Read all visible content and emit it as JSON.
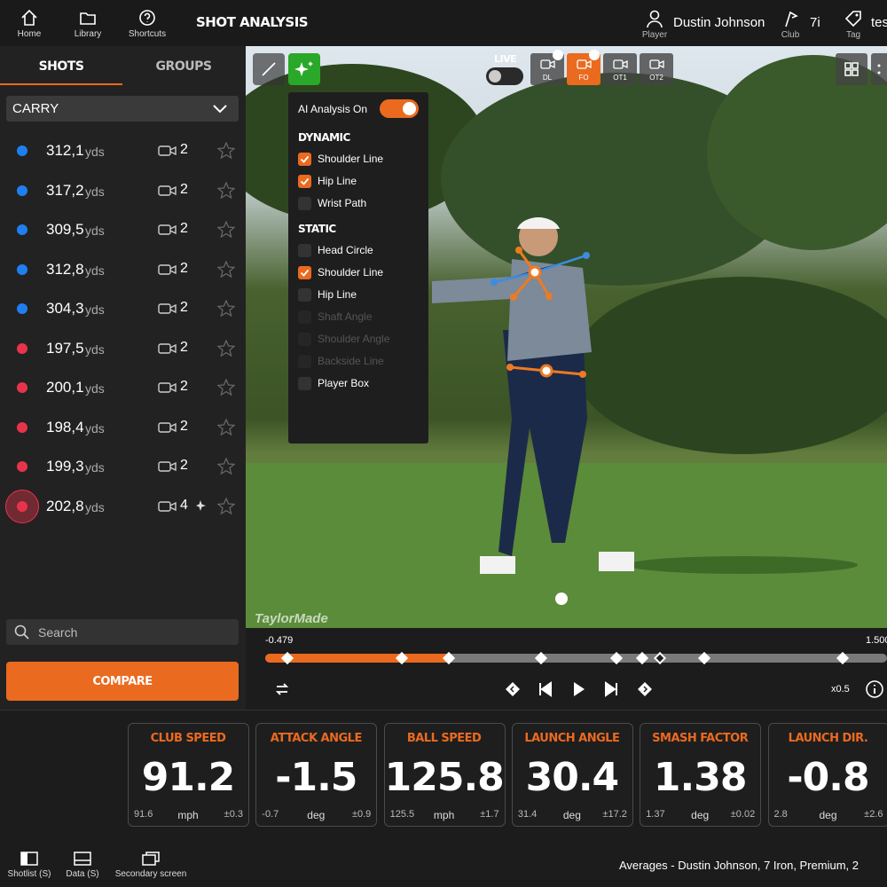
{
  "nav": {
    "items": [
      "Home",
      "Library",
      "Shortcuts"
    ],
    "title": "SHOT ANALYSIS",
    "player": {
      "name": "Dustin Johnson",
      "label": "Player"
    },
    "club": {
      "value": "7i",
      "label": "Club"
    },
    "tag": {
      "value": "tes",
      "label": "Tag"
    }
  },
  "sidebar": {
    "tabs": [
      "SHOTS",
      "GROUPS"
    ],
    "dropdown": "CARRY",
    "shots": [
      {
        "value": "312,1",
        "unit": "yds",
        "videos": 2,
        "color": "#1f7ff0"
      },
      {
        "value": "317,2",
        "unit": "yds",
        "videos": 2,
        "color": "#1f7ff0"
      },
      {
        "value": "309,5",
        "unit": "yds",
        "videos": 2,
        "color": "#1f7ff0"
      },
      {
        "value": "312,8",
        "unit": "yds",
        "videos": 2,
        "color": "#1f7ff0"
      },
      {
        "value": "304,3",
        "unit": "yds",
        "videos": 2,
        "color": "#1f7ff0"
      },
      {
        "value": "197,5",
        "unit": "yds",
        "videos": 2,
        "color": "#e8344b"
      },
      {
        "value": "200,1",
        "unit": "yds",
        "videos": 2,
        "color": "#e8344b"
      },
      {
        "value": "198,4",
        "unit": "yds",
        "videos": 2,
        "color": "#e8344b"
      },
      {
        "value": "199,3",
        "unit": "yds",
        "videos": 2,
        "color": "#e8344b"
      },
      {
        "value": "202,8",
        "unit": "yds",
        "videos": 4,
        "color": "#e8344b",
        "selected": true
      }
    ],
    "search": "Search",
    "compare": "COMPARE"
  },
  "video": {
    "live": "LIVE",
    "cameras": [
      "DL",
      "FO",
      "OT1",
      "OT2"
    ],
    "active_camera": 1,
    "watermark": "TaylorMade",
    "ai_panel": {
      "toggle": "AI Analysis On",
      "sections": [
        {
          "title": "DYNAMIC",
          "items": [
            {
              "label": "Shoulder Line",
              "checked": true
            },
            {
              "label": "Hip Line",
              "checked": true
            },
            {
              "label": "Wrist Path",
              "checked": false
            }
          ]
        },
        {
          "title": "STATIC",
          "items": [
            {
              "label": "Head Circle",
              "checked": false
            },
            {
              "label": "Shoulder Line",
              "checked": true
            },
            {
              "label": "Hip Line",
              "checked": false
            },
            {
              "label": "Shaft Angle",
              "checked": false,
              "disabled": true
            },
            {
              "label": "Shoulder Angle",
              "checked": false,
              "disabled": true
            },
            {
              "label": "Backside Line",
              "checked": false,
              "disabled": true
            },
            {
              "label": "Player Box",
              "checked": false
            }
          ]
        }
      ]
    },
    "timeline": {
      "start": "-0.479",
      "end": "1.500",
      "speed": "x0.5"
    }
  },
  "metrics": [
    {
      "label": "CLUB SPEED",
      "value": 91.2,
      "min": 91.6,
      "unit": "mph",
      "dev": "±0.3"
    },
    {
      "label": "ATTACK ANGLE",
      "value": -1.5,
      "min": -0.7,
      "unit": "deg",
      "dev": "±0.9"
    },
    {
      "label": "BALL SPEED",
      "value": 125.8,
      "min": 125.5,
      "unit": "mph",
      "dev": "±1.7"
    },
    {
      "label": "LAUNCH ANGLE",
      "value": 30.4,
      "min": 31.4,
      "unit": "deg",
      "dev": "±17.2"
    },
    {
      "label": "SMASH FACTOR",
      "value": 1.38,
      "min": 1.37,
      "unit": "deg",
      "dev": "±0.02"
    },
    {
      "label": "LAUNCH DIR.",
      "value": -0.8,
      "min": 2.8,
      "unit": "deg",
      "dev": "±2.6"
    }
  ],
  "footer": {
    "items": [
      "Shotlist (S)",
      "Data (S)",
      "Secondary screen"
    ],
    "summary": "Averages - Dustin Johnson, 7 Iron, Premium, 2"
  }
}
